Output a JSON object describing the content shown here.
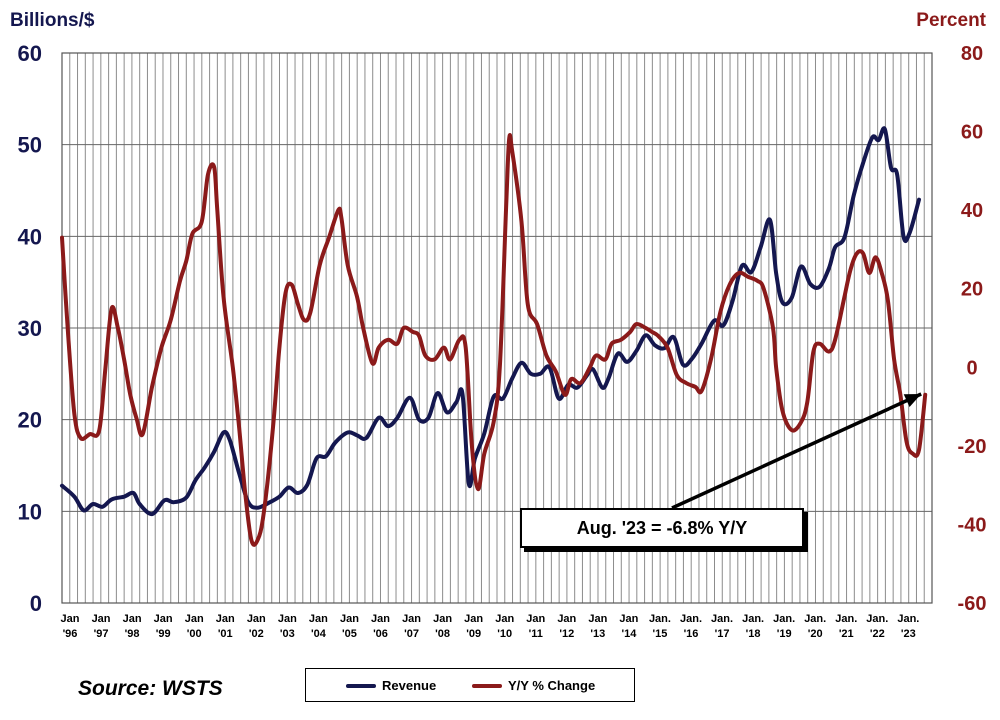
{
  "chart_data": {
    "type": "line",
    "left_axis_title": "Billions/$",
    "right_axis_title": "Percent",
    "left_ylim": [
      0,
      60
    ],
    "right_ylim": [
      -60,
      80
    ],
    "left_ticks": [
      "0",
      "10",
      "20",
      "30",
      "40",
      "50",
      "60"
    ],
    "right_ticks": [
      "-60",
      "-40",
      "-20",
      "0",
      "20",
      "40",
      "60",
      "80"
    ],
    "x_tick_labels": [
      [
        "Jan",
        "'96"
      ],
      [
        "Jan",
        "'97"
      ],
      [
        "Jan",
        "'98"
      ],
      [
        "Jan",
        "'99"
      ],
      [
        "Jan",
        "'00"
      ],
      [
        "Jan",
        "'01"
      ],
      [
        "Jan",
        "'02"
      ],
      [
        "Jan",
        "'03"
      ],
      [
        "Jan",
        "'04"
      ],
      [
        "Jan",
        "'05"
      ],
      [
        "Jan",
        "'06"
      ],
      [
        "Jan",
        "'07"
      ],
      [
        "Jan",
        "'08"
      ],
      [
        "Jan",
        "'09"
      ],
      [
        "Jan",
        "'10"
      ],
      [
        "Jan",
        "'11"
      ],
      [
        "Jan",
        "'12"
      ],
      [
        "Jan",
        "'13"
      ],
      [
        "Jan",
        "'14"
      ],
      [
        "Jan.",
        "'15"
      ],
      [
        "Jan.",
        "'16"
      ],
      [
        "Jan.",
        "'17"
      ],
      [
        "Jan.",
        "'18"
      ],
      [
        "Jan.",
        "'19"
      ],
      [
        "Jan.",
        "'20"
      ],
      [
        "Jan.",
        "'21"
      ],
      [
        "Jan.",
        "'22"
      ],
      [
        "Jan.",
        "'23"
      ]
    ],
    "x_start": 1996.0,
    "grid": "vertical-and-horizontal",
    "legend_placement": "bottom-center",
    "series": [
      {
        "name": "Revenue",
        "axis": "left",
        "color": "#14174f",
        "points": [
          [
            1996.0,
            12.8
          ],
          [
            1996.4,
            11.6
          ],
          [
            1996.7,
            10.1
          ],
          [
            1997.0,
            10.8
          ],
          [
            1997.3,
            10.5
          ],
          [
            1997.6,
            11.3
          ],
          [
            1998.0,
            11.6
          ],
          [
            1998.3,
            12.0
          ],
          [
            1998.5,
            10.8
          ],
          [
            1998.9,
            9.7
          ],
          [
            1999.3,
            11.2
          ],
          [
            1999.6,
            11.0
          ],
          [
            2000.0,
            11.5
          ],
          [
            2000.3,
            13.4
          ],
          [
            2000.6,
            14.8
          ],
          [
            2000.9,
            16.5
          ],
          [
            2001.2,
            18.6
          ],
          [
            2001.4,
            17.8
          ],
          [
            2001.7,
            14.2
          ],
          [
            2002.0,
            11.0
          ],
          [
            2002.3,
            10.4
          ],
          [
            2002.7,
            11.0
          ],
          [
            2003.0,
            11.6
          ],
          [
            2003.3,
            12.6
          ],
          [
            2003.6,
            12.0
          ],
          [
            2003.9,
            12.9
          ],
          [
            2004.2,
            15.8
          ],
          [
            2004.5,
            16.0
          ],
          [
            2004.8,
            17.5
          ],
          [
            2005.2,
            18.6
          ],
          [
            2005.5,
            18.3
          ],
          [
            2005.8,
            18.0
          ],
          [
            2006.2,
            20.2
          ],
          [
            2006.5,
            19.3
          ],
          [
            2006.8,
            20.2
          ],
          [
            2007.2,
            22.4
          ],
          [
            2007.5,
            20.0
          ],
          [
            2007.8,
            20.2
          ],
          [
            2008.1,
            22.9
          ],
          [
            2008.4,
            20.8
          ],
          [
            2008.7,
            21.9
          ],
          [
            2008.9,
            22.8
          ],
          [
            2009.1,
            13.0
          ],
          [
            2009.3,
            15.8
          ],
          [
            2009.6,
            18.5
          ],
          [
            2009.9,
            22.5
          ],
          [
            2010.2,
            22.3
          ],
          [
            2010.5,
            24.5
          ],
          [
            2010.8,
            26.2
          ],
          [
            2011.1,
            25.0
          ],
          [
            2011.4,
            25.0
          ],
          [
            2011.7,
            25.7
          ],
          [
            2012.0,
            22.3
          ],
          [
            2012.3,
            23.8
          ],
          [
            2012.6,
            23.5
          ],
          [
            2012.9,
            24.8
          ],
          [
            2013.1,
            25.5
          ],
          [
            2013.4,
            23.5
          ],
          [
            2013.6,
            24.5
          ],
          [
            2013.9,
            27.2
          ],
          [
            2014.2,
            26.3
          ],
          [
            2014.5,
            27.5
          ],
          [
            2014.8,
            29.2
          ],
          [
            2015.1,
            28.1
          ],
          [
            2015.4,
            27.8
          ],
          [
            2015.7,
            29.0
          ],
          [
            2016.0,
            26.0
          ],
          [
            2016.3,
            26.7
          ],
          [
            2016.6,
            28.3
          ],
          [
            2017.0,
            30.8
          ],
          [
            2017.3,
            30.3
          ],
          [
            2017.6,
            33.0
          ],
          [
            2017.9,
            36.8
          ],
          [
            2018.2,
            36.1
          ],
          [
            2018.5,
            38.8
          ],
          [
            2018.8,
            41.8
          ],
          [
            2019.0,
            36.0
          ],
          [
            2019.2,
            32.8
          ],
          [
            2019.5,
            33.3
          ],
          [
            2019.8,
            36.7
          ],
          [
            2020.1,
            34.8
          ],
          [
            2020.4,
            34.5
          ],
          [
            2020.7,
            36.5
          ],
          [
            2020.9,
            38.8
          ],
          [
            2021.2,
            39.9
          ],
          [
            2021.5,
            44.5
          ],
          [
            2021.8,
            48.0
          ],
          [
            2022.1,
            50.8
          ],
          [
            2022.3,
            50.5
          ],
          [
            2022.5,
            51.7
          ],
          [
            2022.7,
            47.5
          ],
          [
            2022.9,
            46.7
          ],
          [
            2023.1,
            40.0
          ],
          [
            2023.3,
            40.4
          ],
          [
            2023.6,
            44.0
          ]
        ]
      },
      {
        "name": "Y/Y % Change",
        "axis": "right",
        "color": "#8b1a1a",
        "points": [
          [
            1996.0,
            33
          ],
          [
            1996.2,
            8
          ],
          [
            1996.4,
            -12
          ],
          [
            1996.6,
            -18
          ],
          [
            1996.9,
            -17
          ],
          [
            1997.2,
            -16
          ],
          [
            1997.4,
            0
          ],
          [
            1997.6,
            15
          ],
          [
            1997.8,
            10
          ],
          [
            1998.0,
            2
          ],
          [
            1998.2,
            -7
          ],
          [
            1998.4,
            -13
          ],
          [
            1998.6,
            -17
          ],
          [
            1998.9,
            -5
          ],
          [
            1999.2,
            5
          ],
          [
            1999.5,
            12
          ],
          [
            1999.8,
            22
          ],
          [
            2000.0,
            27
          ],
          [
            2000.2,
            34
          ],
          [
            2000.5,
            37
          ],
          [
            2000.7,
            49
          ],
          [
            2000.9,
            51
          ],
          [
            2001.0,
            40
          ],
          [
            2001.2,
            18
          ],
          [
            2001.5,
            0
          ],
          [
            2001.7,
            -15
          ],
          [
            2001.9,
            -32
          ],
          [
            2002.1,
            -44
          ],
          [
            2002.3,
            -44
          ],
          [
            2002.5,
            -37
          ],
          [
            2002.8,
            -15
          ],
          [
            2003.0,
            5
          ],
          [
            2003.2,
            19
          ],
          [
            2003.4,
            21
          ],
          [
            2003.6,
            16
          ],
          [
            2003.8,
            12
          ],
          [
            2004.0,
            14
          ],
          [
            2004.3,
            26
          ],
          [
            2004.6,
            33
          ],
          [
            2004.9,
            40
          ],
          [
            2005.0,
            38
          ],
          [
            2005.2,
            26
          ],
          [
            2005.5,
            18
          ],
          [
            2005.7,
            10
          ],
          [
            2006.0,
            1
          ],
          [
            2006.2,
            5
          ],
          [
            2006.5,
            7
          ],
          [
            2006.8,
            6
          ],
          [
            2007.0,
            10
          ],
          [
            2007.3,
            9
          ],
          [
            2007.5,
            8
          ],
          [
            2007.7,
            3
          ],
          [
            2008.0,
            2
          ],
          [
            2008.3,
            5
          ],
          [
            2008.5,
            2
          ],
          [
            2008.8,
            7
          ],
          [
            2009.0,
            5
          ],
          [
            2009.2,
            -20
          ],
          [
            2009.4,
            -31
          ],
          [
            2009.6,
            -22
          ],
          [
            2009.9,
            -14
          ],
          [
            2010.1,
            0
          ],
          [
            2010.3,
            40
          ],
          [
            2010.4,
            58
          ],
          [
            2010.5,
            55
          ],
          [
            2010.8,
            37
          ],
          [
            2011.0,
            16
          ],
          [
            2011.3,
            11
          ],
          [
            2011.6,
            3
          ],
          [
            2011.9,
            -1
          ],
          [
            2012.2,
            -7
          ],
          [
            2012.4,
            -3
          ],
          [
            2012.7,
            -4
          ],
          [
            2013.0,
            0
          ],
          [
            2013.2,
            3
          ],
          [
            2013.5,
            2
          ],
          [
            2013.7,
            6
          ],
          [
            2014.0,
            7
          ],
          [
            2014.3,
            9
          ],
          [
            2014.5,
            11
          ],
          [
            2014.8,
            10
          ],
          [
            2015.0,
            9
          ],
          [
            2015.2,
            8
          ],
          [
            2015.5,
            5
          ],
          [
            2015.8,
            -2
          ],
          [
            2016.1,
            -4
          ],
          [
            2016.4,
            -5
          ],
          [
            2016.6,
            -6
          ],
          [
            2016.9,
            2
          ],
          [
            2017.2,
            14
          ],
          [
            2017.5,
            21
          ],
          [
            2017.8,
            24
          ],
          [
            2018.1,
            23
          ],
          [
            2018.4,
            22
          ],
          [
            2018.6,
            20
          ],
          [
            2018.9,
            10
          ],
          [
            2019.0,
            0
          ],
          [
            2019.2,
            -11
          ],
          [
            2019.5,
            -16
          ],
          [
            2019.8,
            -14
          ],
          [
            2020.0,
            -9
          ],
          [
            2020.2,
            4
          ],
          [
            2020.4,
            6
          ],
          [
            2020.7,
            4
          ],
          [
            2020.9,
            7
          ],
          [
            2021.2,
            18
          ],
          [
            2021.4,
            25
          ],
          [
            2021.6,
            29
          ],
          [
            2021.8,
            29
          ],
          [
            2022.0,
            24
          ],
          [
            2022.2,
            28
          ],
          [
            2022.4,
            24
          ],
          [
            2022.6,
            17
          ],
          [
            2022.8,
            2
          ],
          [
            2023.0,
            -7
          ],
          [
            2023.2,
            -19
          ],
          [
            2023.4,
            -22
          ],
          [
            2023.6,
            -21
          ],
          [
            2023.8,
            -7
          ]
        ]
      }
    ],
    "annotation": {
      "text": "Aug. '23 = -6.8% Y/Y",
      "points_to": [
        2023.8,
        -6.8
      ]
    }
  },
  "source_text": "Source: WSTS",
  "legend": {
    "revenue_label": "Revenue",
    "yy_label": "Y/Y % Change",
    "revenue_color": "#14174f",
    "yy_color": "#8b1a1a"
  },
  "colors": {
    "left_axis": "#14174f",
    "right_axis": "#8b1a1a",
    "grid": "#8c8c8c"
  }
}
